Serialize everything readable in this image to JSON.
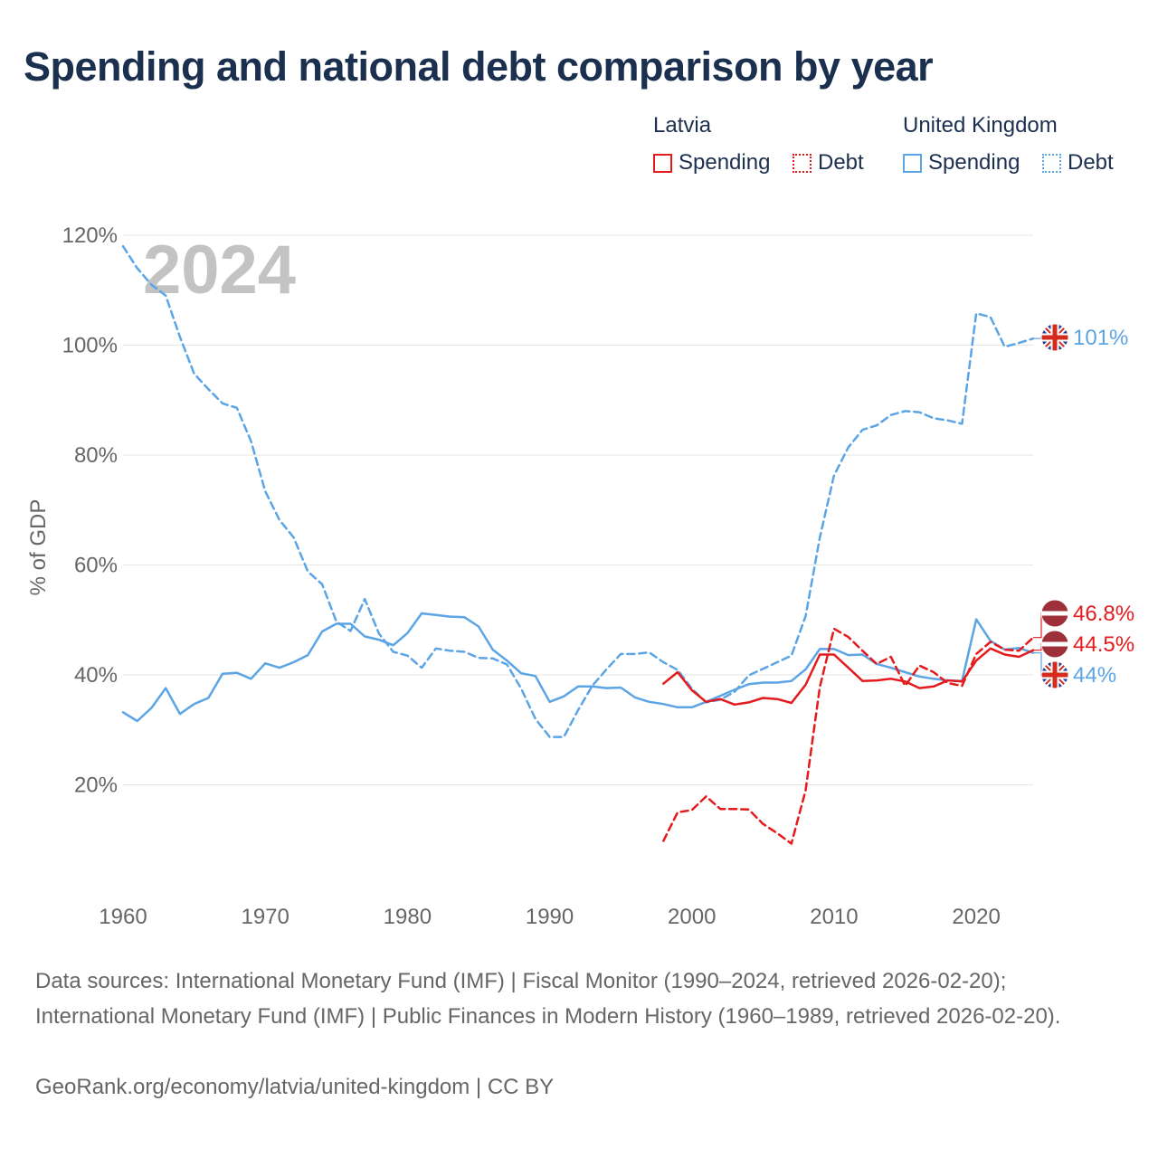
{
  "title": "Spending and national debt comparison by year",
  "legend": {
    "groups": [
      {
        "name": "Latvia",
        "color": "#e41a1c",
        "items": [
          "Spending",
          "Debt"
        ]
      },
      {
        "name": "United Kingdom",
        "color": "#5ba4e5",
        "items": [
          "Spending",
          "Debt"
        ]
      }
    ]
  },
  "colors": {
    "latvia": "#e41a1c",
    "uk": "#5ba4e5",
    "grid": "#e6e6e6",
    "axis_text": "#666666",
    "title": "#1b2f4f",
    "year_label": "#c3c3c3"
  },
  "chart_data": {
    "type": "line",
    "title": "Spending and national debt comparison by year",
    "xlabel": "",
    "ylabel": "% of GDP",
    "xlim": [
      1960,
      2024
    ],
    "ylim": [
      0,
      120
    ],
    "x_ticks": [
      1960,
      1970,
      1980,
      1990,
      2000,
      2010,
      2020
    ],
    "y_ticks": [
      20,
      40,
      60,
      80,
      100,
      120
    ],
    "y_tick_labels": [
      "20%",
      "40%",
      "60%",
      "80%",
      "100%",
      "120%"
    ],
    "year_label": "2024",
    "grid": true,
    "series": [
      {
        "name": "United Kingdom Spending",
        "country": "United Kingdom",
        "metric": "Spending",
        "color": "#5ba4e5",
        "dash": "solid",
        "x": [
          1960,
          1961,
          1962,
          1963,
          1964,
          1965,
          1966,
          1967,
          1968,
          1969,
          1970,
          1971,
          1972,
          1973,
          1974,
          1975,
          1976,
          1977,
          1978,
          1979,
          1980,
          1981,
          1982,
          1983,
          1984,
          1985,
          1986,
          1987,
          1988,
          1989,
          1990,
          1991,
          1992,
          1993,
          1994,
          1995,
          1996,
          1997,
          1998,
          1999,
          2000,
          2001,
          2002,
          2003,
          2004,
          2005,
          2006,
          2007,
          2008,
          2009,
          2010,
          2011,
          2012,
          2013,
          2014,
          2015,
          2016,
          2017,
          2018,
          2019,
          2020,
          2021,
          2022,
          2023,
          2024
        ],
        "values": [
          33.2,
          31.6,
          34.0,
          37.6,
          32.9,
          34.7,
          35.8,
          40.2,
          40.4,
          39.3,
          42.1,
          41.3,
          42.3,
          43.6,
          47.9,
          49.3,
          49.3,
          47.0,
          46.4,
          45.4,
          47.6,
          51.2,
          50.9,
          50.6,
          50.5,
          48.8,
          44.6,
          42.6,
          40.3,
          39.8,
          35.1,
          36.1,
          37.9,
          37.9,
          37.6,
          37.7,
          35.9,
          35.1,
          34.7,
          34.1,
          34.1,
          35.1,
          36.2,
          37.3,
          38.3,
          38.6,
          38.6,
          38.9,
          41.0,
          44.7,
          44.7,
          43.6,
          43.7,
          42.0,
          41.3,
          40.5,
          39.7,
          39.3,
          39.0,
          38.9,
          50.1,
          46.2,
          44.6,
          44.9,
          44.0
        ]
      },
      {
        "name": "United Kingdom Debt",
        "country": "United Kingdom",
        "metric": "Debt",
        "color": "#5ba4e5",
        "dash": "dashed",
        "x": [
          1960,
          1961,
          1962,
          1963,
          1964,
          1965,
          1966,
          1967,
          1968,
          1969,
          1970,
          1971,
          1972,
          1973,
          1974,
          1975,
          1976,
          1977,
          1978,
          1979,
          1980,
          1981,
          1982,
          1983,
          1984,
          1985,
          1986,
          1987,
          1988,
          1989,
          1990,
          1991,
          1992,
          1993,
          1994,
          1995,
          1996,
          1997,
          1998,
          1999,
          2000,
          2001,
          2002,
          2003,
          2004,
          2005,
          2006,
          2007,
          2008,
          2009,
          2010,
          2011,
          2012,
          2013,
          2014,
          2015,
          2016,
          2017,
          2018,
          2019,
          2020,
          2021,
          2022,
          2023,
          2024
        ],
        "values": [
          118.0,
          114.0,
          111.0,
          109.0,
          101.5,
          94.8,
          92.0,
          89.4,
          88.6,
          82.5,
          73.4,
          68.2,
          65.0,
          58.8,
          56.5,
          49.7,
          48.0,
          53.8,
          47.5,
          44.2,
          43.5,
          41.3,
          44.8,
          44.4,
          44.2,
          43.1,
          43.0,
          41.9,
          37.5,
          32.0,
          28.7,
          28.7,
          33.6,
          38.0,
          41.0,
          43.8,
          43.8,
          44.1,
          42.3,
          40.9,
          37.5,
          35.0,
          35.5,
          36.9,
          39.9,
          41.1,
          42.3,
          43.5,
          50.7,
          65.0,
          76.3,
          81.4,
          84.6,
          85.4,
          87.3,
          88.0,
          87.8,
          86.7,
          86.3,
          85.7,
          105.8,
          105.1,
          99.7,
          100.4,
          101.2
        ]
      },
      {
        "name": "Latvia Spending",
        "country": "Latvia",
        "metric": "Spending",
        "color": "#e41a1c",
        "dash": "solid",
        "x": [
          1998,
          1999,
          2000,
          2001,
          2002,
          2003,
          2004,
          2005,
          2006,
          2007,
          2008,
          2009,
          2010,
          2011,
          2012,
          2013,
          2014,
          2015,
          2016,
          2017,
          2018,
          2019,
          2020,
          2021,
          2022,
          2023,
          2024
        ],
        "values": [
          38.4,
          40.5,
          37.2,
          35.1,
          35.6,
          34.6,
          35.0,
          35.8,
          35.6,
          34.9,
          38.2,
          43.7,
          43.7,
          41.3,
          38.9,
          39.0,
          39.3,
          38.8,
          37.6,
          37.9,
          39.0,
          38.8,
          42.6,
          44.8,
          43.7,
          43.3,
          44.5
        ]
      },
      {
        "name": "Latvia Debt",
        "country": "Latvia",
        "metric": "Debt",
        "color": "#e41a1c",
        "dash": "dashed",
        "x": [
          1998,
          1999,
          2000,
          2001,
          2002,
          2003,
          2004,
          2005,
          2006,
          2007,
          2008,
          2009,
          2010,
          2011,
          2012,
          2013,
          2014,
          2015,
          2016,
          2017,
          2018,
          2019,
          2020,
          2021,
          2022,
          2023,
          2024
        ],
        "values": [
          9.8,
          15.0,
          15.4,
          17.9,
          15.6,
          15.6,
          15.5,
          12.9,
          11.2,
          9.3,
          19.0,
          37.8,
          48.4,
          46.9,
          44.4,
          42.0,
          43.3,
          38.0,
          41.7,
          40.5,
          38.5,
          38.0,
          43.8,
          46.0,
          44.6,
          44.4,
          46.8
        ]
      }
    ],
    "end_labels": [
      {
        "text": "101%",
        "country": "United Kingdom",
        "value": 101.2
      },
      {
        "text": "46.8%",
        "country": "Latvia",
        "value": 46.8
      },
      {
        "text": "44.5%",
        "country": "Latvia",
        "value": 44.5
      },
      {
        "text": "44%",
        "country": "United Kingdom",
        "value": 44.0
      }
    ]
  },
  "footer": {
    "sources": "Data sources: International Monetary Fund (IMF) | Fiscal Monitor (1990–2024, retrieved 2026-02-20); International Monetary Fund (IMF) | Public Finances in Modern History (1960–1989, retrieved 2026-02-20).",
    "credit": "GeoRank.org/economy/latvia/united-kingdom | CC BY"
  }
}
